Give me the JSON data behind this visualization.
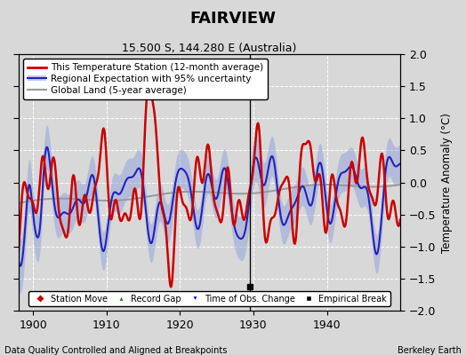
{
  "title": "FAIRVIEW",
  "subtitle": "15.500 S, 144.280 E (Australia)",
  "ylabel": "Temperature Anomaly (°C)",
  "xlabel_bottom": "Data Quality Controlled and Aligned at Breakpoints",
  "xlabel_right": "Berkeley Earth",
  "ylim": [
    -2,
    2
  ],
  "xlim": [
    1898.0,
    1950.0
  ],
  "xticks": [
    1900,
    1910,
    1920,
    1930,
    1940
  ],
  "yticks": [
    -2,
    -1.5,
    -1,
    -0.5,
    0,
    0.5,
    1,
    1.5,
    2
  ],
  "bg_color": "#d8d8d8",
  "plot_bg_color": "#d8d8d8",
  "grid_color": "#ffffff",
  "empirical_break_x": 1929.5,
  "red_color": "#cc0000",
  "blue_color": "#2222bb",
  "blue_fill_color": "#8899dd",
  "gray_color": "#999999"
}
